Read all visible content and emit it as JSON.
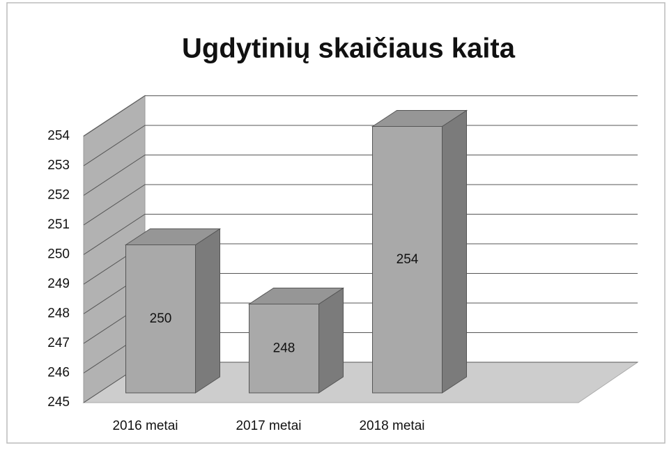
{
  "chart_data": {
    "type": "bar3d",
    "title": "Ugdytinių skaičiaus kaita",
    "categories": [
      "2016 metai",
      "2017 metai",
      "2018 metai"
    ],
    "values": [
      250,
      248,
      254
    ],
    "color": "#a9a9a9",
    "ylim": [
      245,
      254
    ],
    "yticks": [
      245,
      246,
      247,
      248,
      249,
      250,
      251,
      252,
      253,
      254
    ],
    "grid": true
  }
}
